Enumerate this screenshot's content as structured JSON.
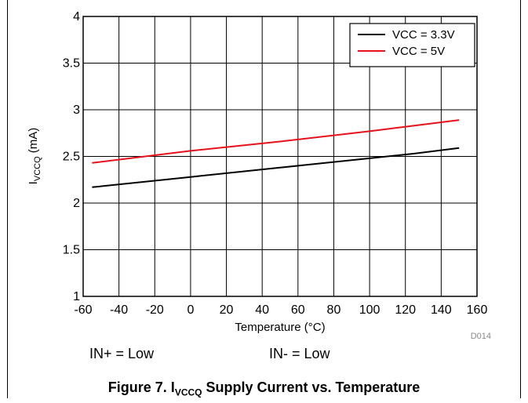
{
  "chart_data": {
    "type": "line",
    "title": "",
    "xlabel": "Temperature (°C)",
    "ylabel_main": "I",
    "ylabel_sub": "VCCQ",
    "ylabel_unit": " (mA)",
    "xlim": [
      -60,
      160
    ],
    "ylim": [
      1,
      4
    ],
    "x_ticks": [
      -60,
      -40,
      -20,
      0,
      20,
      40,
      60,
      80,
      100,
      120,
      140,
      160
    ],
    "y_ticks": [
      1,
      1.5,
      2,
      2.5,
      3,
      3.5,
      4
    ],
    "y_tick_labels": [
      "1",
      "1.5",
      "2",
      "2.5",
      "3",
      "3.5",
      "4"
    ],
    "grid": true,
    "legend_position": "top-right",
    "series": [
      {
        "name": "VCC = 3.3V",
        "color": "#000000",
        "x": [
          -55,
          0,
          50,
          100,
          125,
          150
        ],
        "y": [
          2.17,
          2.28,
          2.38,
          2.48,
          2.53,
          2.59
        ]
      },
      {
        "name": "VCC = 5V",
        "color": "#e8101a",
        "x": [
          -55,
          0,
          50,
          100,
          125,
          150
        ],
        "y": [
          2.43,
          2.56,
          2.66,
          2.77,
          2.83,
          2.89
        ]
      }
    ],
    "code": "D014"
  },
  "conditions": {
    "in_plus": "IN+ = Low",
    "in_minus": "IN- = Low"
  },
  "caption": {
    "prefix": "Figure 7. I",
    "sub": "VCCQ",
    "suffix": " Supply Current vs. Temperature"
  }
}
